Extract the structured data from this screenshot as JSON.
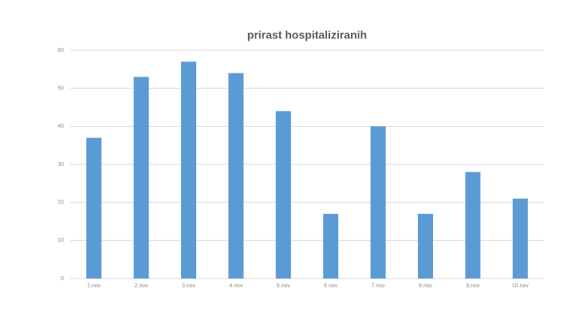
{
  "chart_data": {
    "type": "bar",
    "title": "prirast hospitaliziranih",
    "categories": [
      "1.nov",
      "2.nov",
      "3.nov",
      "4.nov",
      "5.nov",
      "6.nov",
      "7.nov",
      "8.nov",
      "9.nov",
      "10.nov"
    ],
    "values": [
      37,
      53,
      57,
      54,
      44,
      17,
      40,
      17,
      28,
      21
    ],
    "color": "#5b9bd5",
    "ylim": [
      0,
      60
    ],
    "yticks": [
      0,
      10,
      20,
      30,
      40,
      50,
      60
    ],
    "grid": true
  }
}
